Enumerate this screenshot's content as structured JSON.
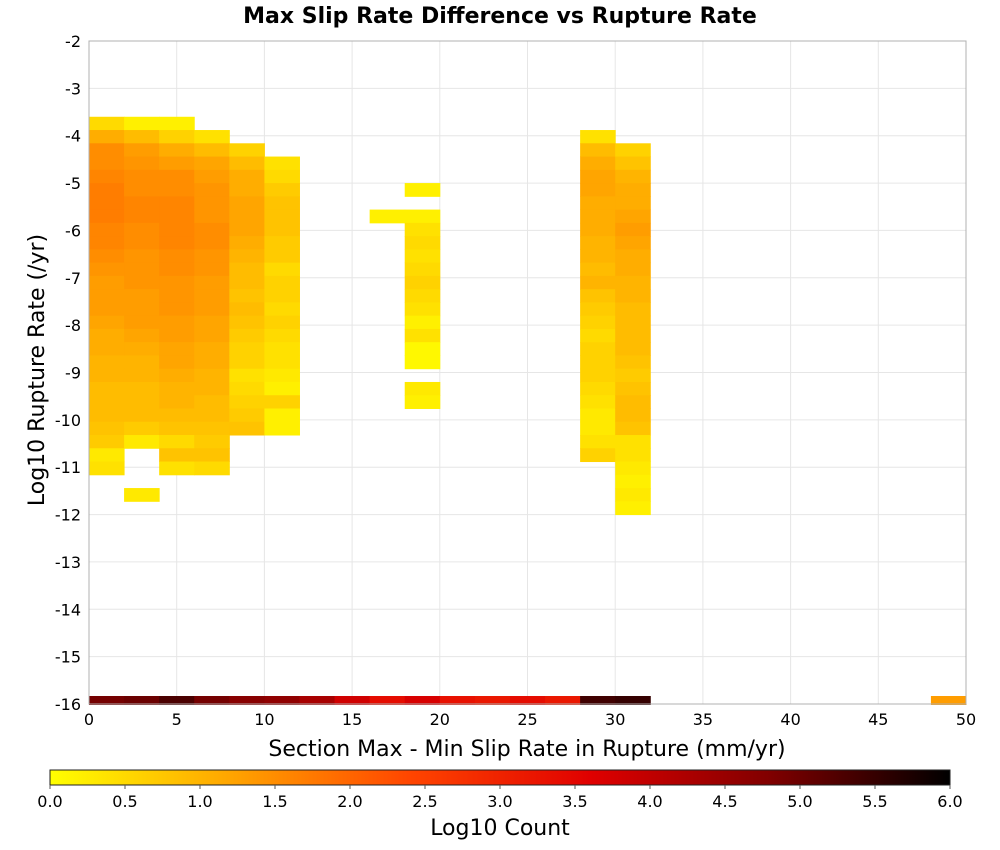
{
  "chart_data": {
    "type": "heatmap",
    "title": "Max Slip Rate Difference vs Rupture Rate",
    "xlabel": "Section Max - Min Slip Rate in Rupture (mm/yr)",
    "ylabel": "Log10 Rupture Rate (/yr)",
    "xlim": [
      0,
      50
    ],
    "ylim": [
      -16,
      -2
    ],
    "x_ticks": [
      0,
      5,
      10,
      15,
      20,
      25,
      30,
      35,
      40,
      45,
      50
    ],
    "y_ticks": [
      -16,
      -15,
      -14,
      -13,
      -12,
      -11,
      -10,
      -9,
      -8,
      -7,
      -6,
      -5,
      -4,
      -3,
      -2
    ],
    "x_bin_width": 2,
    "y_bin_height": 0.28,
    "grid": true,
    "colorbar": {
      "label": "Log10 Count",
      "range": [
        0.0,
        6.0
      ],
      "ticks": [
        "0.0",
        "0.5",
        "1.0",
        "1.5",
        "2.0",
        "2.5",
        "3.0",
        "3.5",
        "4.0",
        "4.5",
        "5.0",
        "5.5",
        "6.0"
      ],
      "colors": [
        "#ffff00",
        "#ffa500",
        "#ff4500",
        "#e00000",
        "#800000",
        "#000000"
      ]
    },
    "columns": [
      {
        "x_start": 0,
        "y_top": -3.6,
        "values": [
          0.5,
          1.1,
          1.5,
          1.5,
          1.6,
          1.7,
          1.7,
          1.7,
          1.6,
          1.6,
          1.5,
          1.4,
          1.3,
          1.3,
          1.3,
          1.2,
          1.1,
          1.1,
          1.0,
          1.0,
          0.9,
          0.9,
          0.9,
          0.8,
          0.7,
          0.3,
          0.4
        ]
      },
      {
        "x_start": 2,
        "y_top": -3.6,
        "values": [
          0.2,
          0.9,
          1.3,
          1.4,
          1.5,
          1.5,
          1.6,
          1.6,
          1.5,
          1.5,
          1.4,
          1.4,
          1.4,
          1.3,
          1.3,
          1.3,
          1.2,
          1.1,
          1.0,
          1.0,
          0.9,
          0.9,
          0.9,
          0.7,
          0.3,
          null,
          null,
          null,
          0.3
        ]
      },
      {
        "x_start": 4,
        "y_top": -3.6,
        "values": [
          0.2,
          0.6,
          1.1,
          1.3,
          1.5,
          1.5,
          1.6,
          1.6,
          1.6,
          1.6,
          1.5,
          1.5,
          1.4,
          1.4,
          1.4,
          1.3,
          1.3,
          1.2,
          1.2,
          1.1,
          1.0,
          1.0,
          0.9,
          0.8,
          0.5,
          0.8,
          0.4
        ]
      },
      {
        "x_start": 6,
        "y_top": -3.88,
        "values": [
          0.4,
          0.9,
          1.2,
          1.3,
          1.4,
          1.4,
          1.4,
          1.5,
          1.5,
          1.4,
          1.4,
          1.3,
          1.3,
          1.3,
          1.2,
          1.2,
          1.1,
          1.1,
          1.0,
          1.0,
          0.9,
          0.9,
          0.8,
          0.7,
          0.8,
          0.5
        ]
      },
      {
        "x_start": 8,
        "y_top": -4.16,
        "values": [
          0.6,
          0.9,
          1.1,
          1.1,
          1.2,
          1.2,
          1.2,
          1.1,
          1.0,
          0.9,
          0.9,
          0.8,
          0.9,
          0.8,
          0.7,
          0.6,
          0.6,
          0.4,
          0.5,
          0.6,
          0.7,
          0.8
        ]
      },
      {
        "x_start": 10,
        "y_top": -4.44,
        "values": [
          0.4,
          0.5,
          0.7,
          0.8,
          0.8,
          0.8,
          0.7,
          0.7,
          0.5,
          0.6,
          0.6,
          0.5,
          0.6,
          0.5,
          0.4,
          0.4,
          0.3,
          0.2,
          0.6,
          0.2,
          0.2
        ]
      },
      {
        "x_start": 16,
        "y_top": -5.56,
        "values": [
          0.2
        ]
      },
      {
        "x_start": 18,
        "y_top": -5.0,
        "values": [
          0.2,
          null,
          0.2,
          0.4,
          0.5,
          0.4,
          0.5,
          0.6,
          0.5,
          0.4,
          0.2,
          0.4,
          0.1,
          0.1,
          null,
          0.3,
          0.2
        ]
      },
      {
        "x_start": 28,
        "y_top": -3.88,
        "values": [
          0.4,
          0.9,
          1.1,
          1.2,
          1.2,
          1.1,
          1.1,
          1.1,
          1.0,
          1.0,
          0.9,
          1.0,
          0.8,
          0.7,
          0.6,
          0.5,
          0.6,
          0.6,
          0.6,
          0.5,
          0.4,
          0.3,
          0.3,
          0.4,
          0.6
        ]
      },
      {
        "x_start": 30,
        "y_top": -4.16,
        "values": [
          0.6,
          0.8,
          1.0,
          1.1,
          1.1,
          1.2,
          1.3,
          1.2,
          1.1,
          1.1,
          1.0,
          1.0,
          0.9,
          0.9,
          0.9,
          0.9,
          0.8,
          0.7,
          0.8,
          0.9,
          0.9,
          0.8,
          0.4,
          0.4,
          0.3,
          0.2,
          0.3,
          0.2
        ]
      }
    ],
    "bottom_row": {
      "y": -16,
      "bins": [
        {
          "x": 0,
          "value": 4.9
        },
        {
          "x": 2,
          "value": 5.0
        },
        {
          "x": 4,
          "value": 5.3
        },
        {
          "x": 6,
          "value": 4.9
        },
        {
          "x": 8,
          "value": 4.7
        },
        {
          "x": 10,
          "value": 4.6
        },
        {
          "x": 12,
          "value": 4.3
        },
        {
          "x": 14,
          "value": 3.8
        },
        {
          "x": 16,
          "value": 3.4
        },
        {
          "x": 18,
          "value": 3.7
        },
        {
          "x": 20,
          "value": 3.3
        },
        {
          "x": 22,
          "value": 3.2
        },
        {
          "x": 24,
          "value": 3.4
        },
        {
          "x": 26,
          "value": 3.2
        },
        {
          "x": 28,
          "value": 5.4
        },
        {
          "x": 30,
          "value": 5.5
        },
        {
          "x": 48,
          "value": 1.3
        }
      ]
    }
  }
}
